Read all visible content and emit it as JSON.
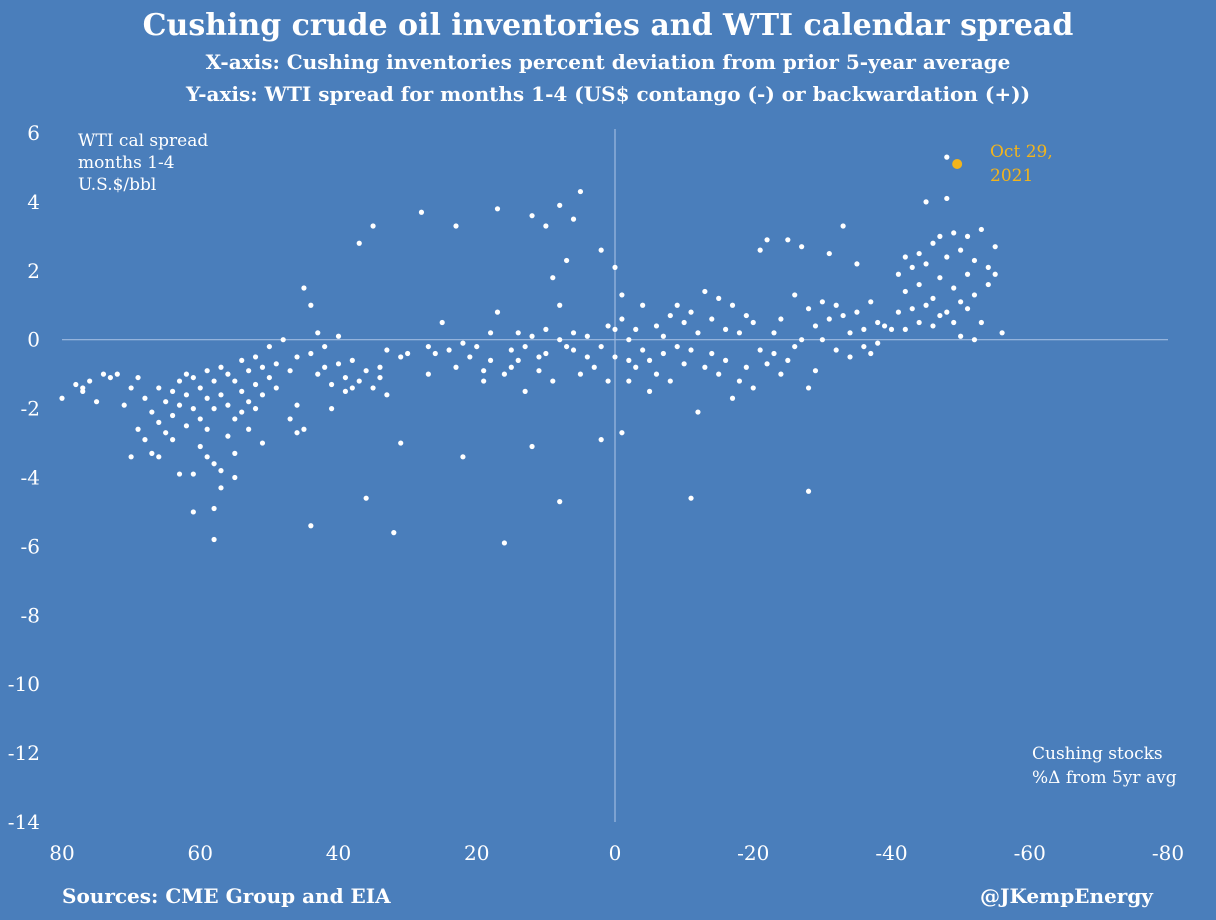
{
  "header": {
    "title": "Cushing crude oil inventories and WTI calendar spread",
    "subtitle_x": "X-axis: Cushing inventories percent deviation from prior 5-year average",
    "subtitle_y": "Y-axis: WTI spread for months 1-4 (US$ contango (-) or backwardation (+))"
  },
  "footer": {
    "source": "Sources: CME Group and EIA",
    "credit": "@JKempEnergy"
  },
  "colors": {
    "background": "#4a7ebb",
    "points": "#ffffff",
    "highlight": "#f2b41c"
  },
  "chart_data": {
    "type": "scatter",
    "ylabel": "WTI cal spread\nmonths 1-4\nU.S.$/bbl",
    "xlabel": "Cushing stocks\n%Δ from 5yr avg",
    "xlim": [
      80,
      -80
    ],
    "ylim": [
      -14,
      6
    ],
    "x_reversed": true,
    "x_ticks": [
      80,
      60,
      40,
      20,
      0,
      -20,
      -40,
      -60,
      -80
    ],
    "x_tick_labels": [
      "80",
      "60",
      "40",
      "20",
      "0",
      "-20",
      "-40",
      "-60",
      "-80"
    ],
    "y_ticks": [
      6,
      4,
      2,
      0,
      -2,
      -4,
      -6,
      -8,
      -10,
      -12,
      -14
    ],
    "y_tick_labels": [
      "6",
      "4",
      "2",
      "0",
      "-2",
      "-4",
      "-6",
      "-8",
      "-10",
      "-12",
      "-14"
    ],
    "highlight": {
      "x": -49.5,
      "y": 5.1,
      "label": "Oct 29,\n2021"
    },
    "points": [
      [
        80,
        -1.7
      ],
      [
        78,
        -1.3
      ],
      [
        77,
        -1.5
      ],
      [
        77,
        -1.4
      ],
      [
        76,
        -1.2
      ],
      [
        75,
        -1.8
      ],
      [
        74,
        -1.0
      ],
      [
        73,
        -1.1
      ],
      [
        72,
        -1.0
      ],
      [
        71,
        -1.9
      ],
      [
        70,
        -1.4
      ],
      [
        70,
        -3.4
      ],
      [
        69,
        -1.1
      ],
      [
        69,
        -2.6
      ],
      [
        68,
        -1.7
      ],
      [
        68,
        -2.9
      ],
      [
        67,
        -2.1
      ],
      [
        67,
        -3.3
      ],
      [
        66,
        -1.4
      ],
      [
        66,
        -2.4
      ],
      [
        66,
        -3.4
      ],
      [
        65,
        -1.8
      ],
      [
        65,
        -2.7
      ],
      [
        64,
        -1.5
      ],
      [
        64,
        -2.2
      ],
      [
        64,
        -2.9
      ],
      [
        63,
        -1.2
      ],
      [
        63,
        -1.9
      ],
      [
        63,
        -3.9
      ],
      [
        62,
        -1.0
      ],
      [
        62,
        -1.6
      ],
      [
        62,
        -2.5
      ],
      [
        61,
        -1.1
      ],
      [
        61,
        -2.0
      ],
      [
        61,
        -3.9
      ],
      [
        61,
        -5.0
      ],
      [
        60,
        -1.4
      ],
      [
        60,
        -2.3
      ],
      [
        60,
        -3.1
      ],
      [
        59,
        -0.9
      ],
      [
        59,
        -1.7
      ],
      [
        59,
        -2.6
      ],
      [
        59,
        -3.4
      ],
      [
        58,
        -1.2
      ],
      [
        58,
        -2.0
      ],
      [
        58,
        -3.6
      ],
      [
        58,
        -4.9
      ],
      [
        58,
        -5.8
      ],
      [
        57,
        -0.8
      ],
      [
        57,
        -1.6
      ],
      [
        57,
        -3.8
      ],
      [
        57,
        -4.3
      ],
      [
        56,
        -1.0
      ],
      [
        56,
        -1.9
      ],
      [
        56,
        -2.8
      ],
      [
        55,
        -1.2
      ],
      [
        55,
        -2.3
      ],
      [
        55,
        -3.3
      ],
      [
        55,
        -4.0
      ],
      [
        54,
        -0.6
      ],
      [
        54,
        -1.5
      ],
      [
        54,
        -2.1
      ],
      [
        53,
        -0.9
      ],
      [
        53,
        -1.8
      ],
      [
        53,
        -2.6
      ],
      [
        52,
        -0.5
      ],
      [
        52,
        -1.3
      ],
      [
        52,
        -2.0
      ],
      [
        51,
        -0.8
      ],
      [
        51,
        -1.6
      ],
      [
        51,
        -3.0
      ],
      [
        50,
        -0.2
      ],
      [
        50,
        -1.1
      ],
      [
        49,
        -0.7
      ],
      [
        49,
        -1.4
      ],
      [
        48,
        0.0
      ],
      [
        47,
        -0.9
      ],
      [
        47,
        -2.3
      ],
      [
        46,
        -0.5
      ],
      [
        46,
        -1.9
      ],
      [
        46,
        -2.7
      ],
      [
        45,
        1.5
      ],
      [
        45,
        -2.6
      ],
      [
        44,
        1.0
      ],
      [
        44,
        -0.4
      ],
      [
        44,
        -5.4
      ],
      [
        43,
        0.2
      ],
      [
        43,
        -1.0
      ],
      [
        42,
        -0.2
      ],
      [
        42,
        -0.8
      ],
      [
        41,
        -1.3
      ],
      [
        41,
        -2.0
      ],
      [
        40,
        0.1
      ],
      [
        40,
        -0.7
      ],
      [
        39,
        -1.1
      ],
      [
        39,
        -1.5
      ],
      [
        38,
        -0.6
      ],
      [
        38,
        -1.4
      ],
      [
        37,
        2.8
      ],
      [
        37,
        -1.2
      ],
      [
        36,
        -4.6
      ],
      [
        36,
        -0.9
      ],
      [
        35,
        3.3
      ],
      [
        35,
        -1.4
      ],
      [
        34,
        -0.8
      ],
      [
        34,
        -1.1
      ],
      [
        33,
        -0.3
      ],
      [
        33,
        -1.6
      ],
      [
        32,
        -5.6
      ],
      [
        31,
        -3.0
      ],
      [
        31,
        -0.5
      ],
      [
        30,
        -0.4
      ],
      [
        28,
        3.7
      ],
      [
        27,
        -0.2
      ],
      [
        27,
        -1.0
      ],
      [
        26,
        -0.4
      ],
      [
        25,
        0.5
      ],
      [
        24,
        -0.3
      ],
      [
        23,
        3.3
      ],
      [
        23,
        -0.8
      ],
      [
        22,
        -0.1
      ],
      [
        22,
        -3.4
      ],
      [
        21,
        -0.5
      ],
      [
        20,
        -0.2
      ],
      [
        19,
        -0.9
      ],
      [
        19,
        -1.2
      ],
      [
        18,
        -0.6
      ],
      [
        18,
        0.2
      ],
      [
        17,
        3.8
      ],
      [
        17,
        0.8
      ],
      [
        16,
        -5.9
      ],
      [
        16,
        -1.0
      ],
      [
        15,
        -0.3
      ],
      [
        15,
        -0.8
      ],
      [
        14,
        0.2
      ],
      [
        14,
        -0.6
      ],
      [
        13,
        -1.5
      ],
      [
        13,
        -0.2
      ],
      [
        12,
        3.6
      ],
      [
        12,
        -3.1
      ],
      [
        12,
        0.1
      ],
      [
        11,
        -0.5
      ],
      [
        11,
        -0.9
      ],
      [
        10,
        3.3
      ],
      [
        10,
        0.3
      ],
      [
        10,
        -0.4
      ],
      [
        9,
        1.8
      ],
      [
        9,
        -1.2
      ],
      [
        8,
        3.9
      ],
      [
        8,
        1.0
      ],
      [
        8,
        0.0
      ],
      [
        8,
        -4.7
      ],
      [
        7,
        -0.2
      ],
      [
        7,
        2.3
      ],
      [
        6,
        3.5
      ],
      [
        6,
        0.2
      ],
      [
        6,
        -0.3
      ],
      [
        5,
        4.3
      ],
      [
        5,
        -1.0
      ],
      [
        4,
        0.1
      ],
      [
        4,
        -0.5
      ],
      [
        3,
        -0.8
      ],
      [
        2,
        2.6
      ],
      [
        2,
        -0.2
      ],
      [
        2,
        -2.9
      ],
      [
        1,
        0.4
      ],
      [
        1,
        -1.2
      ],
      [
        0,
        2.1
      ],
      [
        0,
        0.3
      ],
      [
        0,
        -0.5
      ],
      [
        -1,
        -2.7
      ],
      [
        -1,
        1.3
      ],
      [
        -1,
        0.6
      ],
      [
        -2,
        0.0
      ],
      [
        -2,
        -0.6
      ],
      [
        -2,
        -1.2
      ],
      [
        -3,
        0.3
      ],
      [
        -3,
        -0.8
      ],
      [
        -4,
        1.0
      ],
      [
        -4,
        -0.3
      ],
      [
        -5,
        -1.5
      ],
      [
        -5,
        -0.6
      ],
      [
        -6,
        0.4
      ],
      [
        -6,
        -1.0
      ],
      [
        -7,
        0.1
      ],
      [
        -7,
        -0.4
      ],
      [
        -8,
        0.7
      ],
      [
        -8,
        -1.2
      ],
      [
        -9,
        1.0
      ],
      [
        -9,
        -0.2
      ],
      [
        -10,
        0.5
      ],
      [
        -10,
        -0.7
      ],
      [
        -11,
        -4.6
      ],
      [
        -11,
        0.8
      ],
      [
        -11,
        -0.3
      ],
      [
        -12,
        -2.1
      ],
      [
        -12,
        0.2
      ],
      [
        -13,
        -0.8
      ],
      [
        -13,
        1.4
      ],
      [
        -14,
        -0.4
      ],
      [
        -14,
        0.6
      ],
      [
        -15,
        -1.0
      ],
      [
        -15,
        1.2
      ],
      [
        -16,
        0.3
      ],
      [
        -16,
        -0.6
      ],
      [
        -17,
        -1.7
      ],
      [
        -17,
        1.0
      ],
      [
        -18,
        0.2
      ],
      [
        -18,
        -1.2
      ],
      [
        -19,
        -0.8
      ],
      [
        -19,
        0.7
      ],
      [
        -20,
        -1.4
      ],
      [
        -20,
        0.5
      ],
      [
        -21,
        2.6
      ],
      [
        -21,
        -0.3
      ],
      [
        -22,
        2.9
      ],
      [
        -22,
        -0.7
      ],
      [
        -23,
        0.2
      ],
      [
        -23,
        -0.4
      ],
      [
        -24,
        0.6
      ],
      [
        -24,
        -1.0
      ],
      [
        -25,
        2.9
      ],
      [
        -25,
        -0.6
      ],
      [
        -26,
        1.3
      ],
      [
        -26,
        -0.2
      ],
      [
        -27,
        2.7
      ],
      [
        -27,
        0.0
      ],
      [
        -28,
        -4.4
      ],
      [
        -28,
        0.9
      ],
      [
        -28,
        -1.4
      ],
      [
        -29,
        0.4
      ],
      [
        -29,
        -0.9
      ],
      [
        -30,
        1.1
      ],
      [
        -30,
        0.0
      ],
      [
        -31,
        2.5
      ],
      [
        -31,
        0.6
      ],
      [
        -32,
        1.0
      ],
      [
        -32,
        -0.3
      ],
      [
        -33,
        3.3
      ],
      [
        -33,
        0.7
      ],
      [
        -34,
        0.2
      ],
      [
        -34,
        -0.5
      ],
      [
        -35,
        2.2
      ],
      [
        -35,
        0.8
      ],
      [
        -36,
        0.3
      ],
      [
        -36,
        -0.2
      ],
      [
        -37,
        -0.4
      ],
      [
        -37,
        1.1
      ],
      [
        -38,
        0.5
      ],
      [
        -38,
        -0.1
      ],
      [
        -39,
        0.4
      ],
      [
        -40,
        0.3
      ],
      [
        -41,
        1.9
      ],
      [
        -41,
        0.8
      ],
      [
        -42,
        2.4
      ],
      [
        -42,
        1.4
      ],
      [
        -42,
        0.3
      ],
      [
        -43,
        2.1
      ],
      [
        -43,
        0.9
      ],
      [
        -44,
        2.5
      ],
      [
        -44,
        1.6
      ],
      [
        -44,
        0.5
      ],
      [
        -45,
        4.0
      ],
      [
        -45,
        2.2
      ],
      [
        -45,
        1.0
      ],
      [
        -46,
        2.8
      ],
      [
        -46,
        1.2
      ],
      [
        -46,
        0.4
      ],
      [
        -47,
        3.0
      ],
      [
        -47,
        1.8
      ],
      [
        -47,
        0.7
      ],
      [
        -48,
        5.3
      ],
      [
        -48,
        4.1
      ],
      [
        -48,
        2.4
      ],
      [
        -48,
        0.8
      ],
      [
        -49,
        3.1
      ],
      [
        -49,
        1.5
      ],
      [
        -49,
        0.5
      ],
      [
        -50,
        2.6
      ],
      [
        -50,
        1.1
      ],
      [
        -50,
        0.1
      ],
      [
        -51,
        3.0
      ],
      [
        -51,
        1.9
      ],
      [
        -51,
        0.9
      ],
      [
        -52,
        2.3
      ],
      [
        -52,
        1.3
      ],
      [
        -52,
        0.0
      ],
      [
        -53,
        3.2
      ],
      [
        -53,
        0.5
      ],
      [
        -54,
        2.1
      ],
      [
        -54,
        1.6
      ],
      [
        -55,
        2.7
      ],
      [
        -55,
        1.9
      ],
      [
        -56,
        0.2
      ]
    ]
  }
}
